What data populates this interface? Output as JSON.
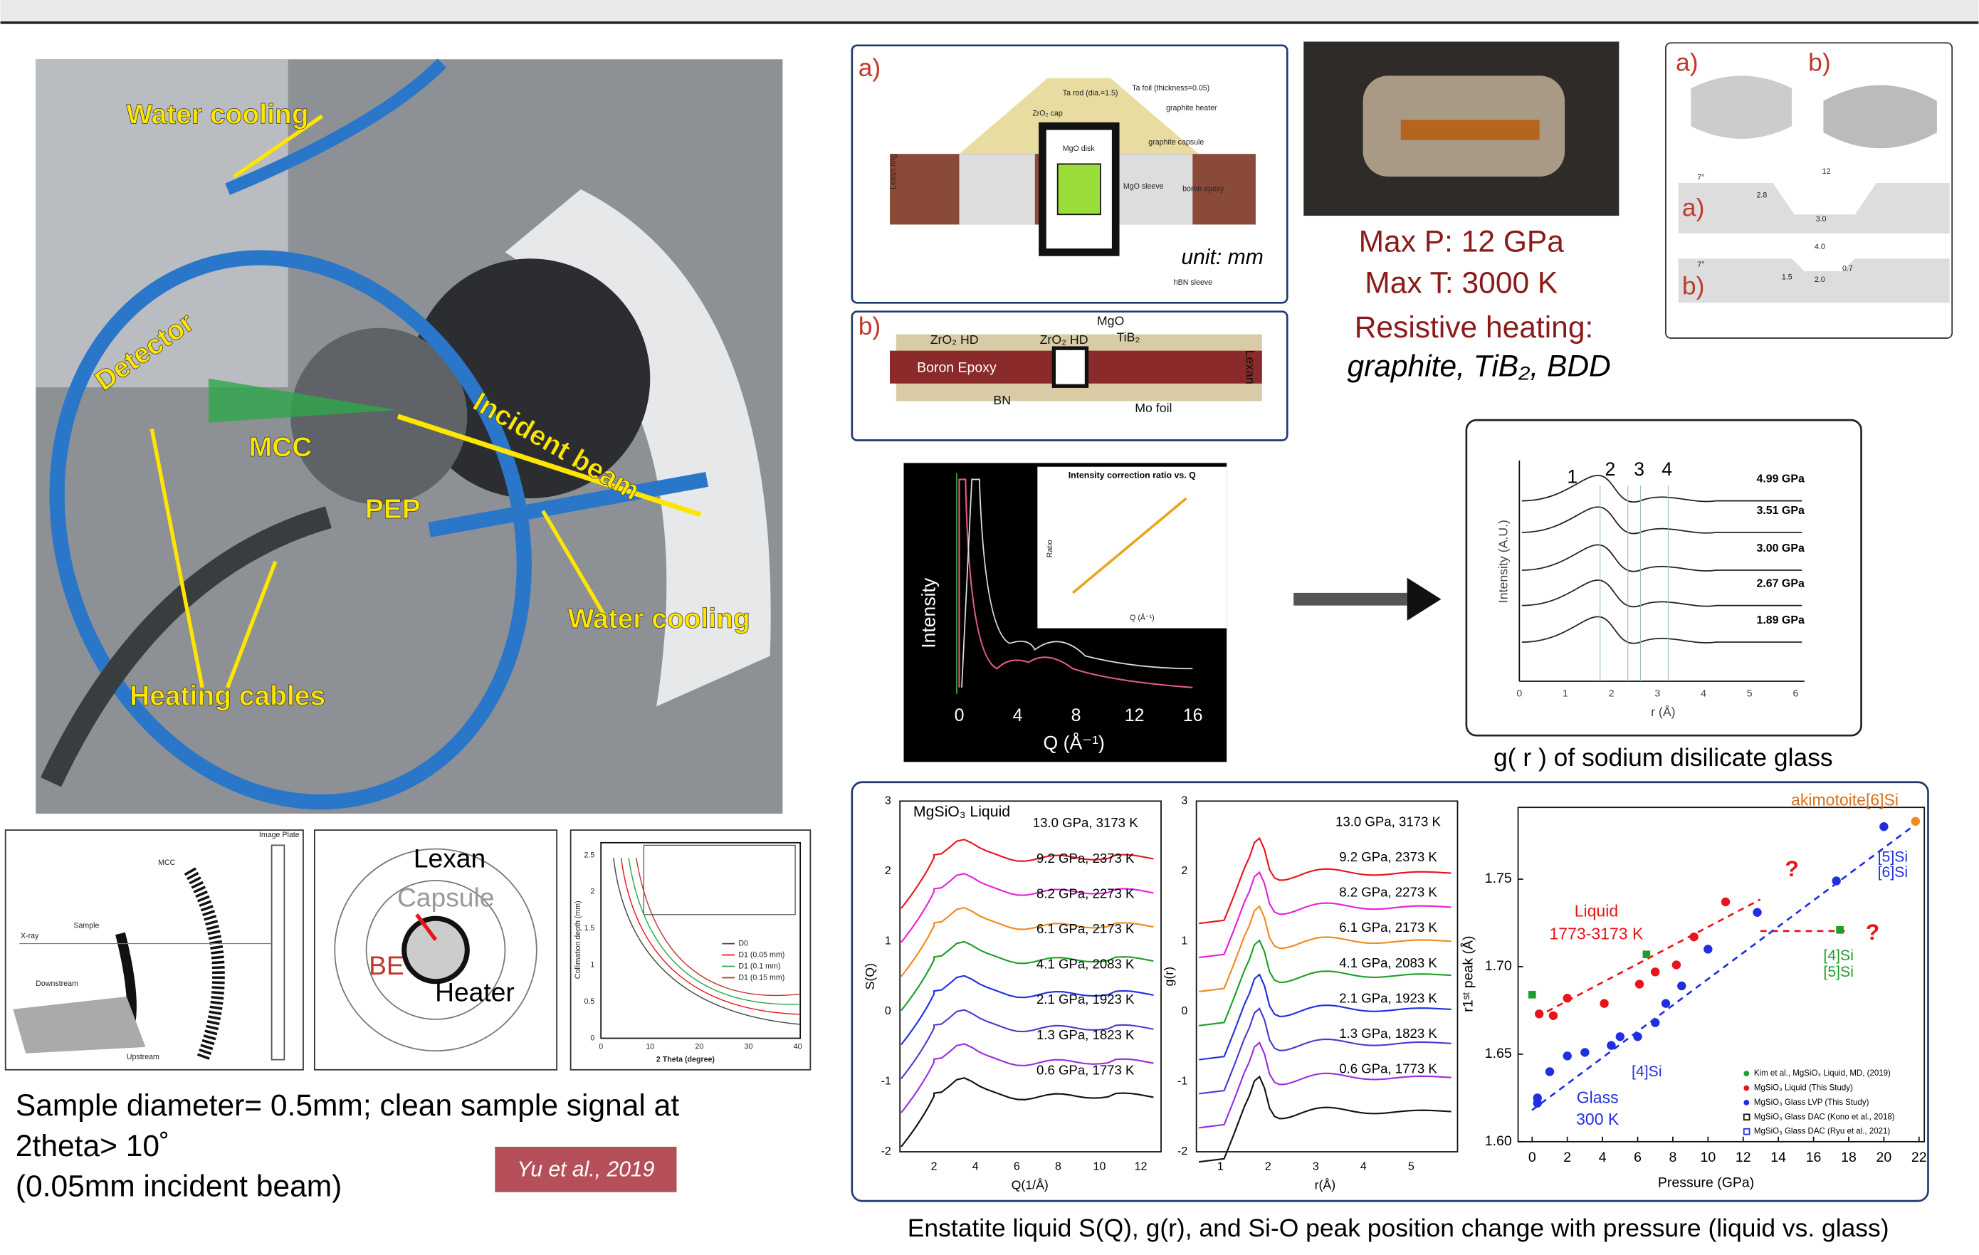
{
  "photo": {
    "labels": [
      "Water cooling",
      "Detector",
      "MCC",
      "Incident beam",
      "PEP",
      "Water cooling",
      "Heating cables"
    ]
  },
  "schematic_mcc": {
    "texts": [
      "MCC",
      "Image Plate",
      "Sample",
      "X-ray",
      "Downstream",
      "Upstream"
    ]
  },
  "schematic_cell": {
    "lexan": "Lexan",
    "capsule": "Capsule",
    "be": "BE",
    "heater": "Heater"
  },
  "schematic_depth": {
    "yticks": [
      "0",
      "0.5",
      "1",
      "1.5",
      "2",
      "2.5"
    ],
    "xticks": [
      "0",
      "10",
      "20",
      "30",
      "40"
    ],
    "xlabel": "2 Theta (degree)",
    "ylabel": "Collimation depth (mm)",
    "legend": [
      "D0",
      "D1 (0.05 mm)",
      "D1 (0.1 mm)",
      "D1 (0.15 mm)"
    ]
  },
  "sample_note": [
    "Sample diameter= 0.5mm; clean sample signal at",
    "2theta> 10˚",
    "(0.05mm incident beam)"
  ],
  "citation": "Yu et al., 2019",
  "cell": {
    "a_label": "a)",
    "b_label": "b)",
    "unit": "unit: mm",
    "a_texts": [
      "ZrO₂ cap",
      "Ta rod (dia.=1.5)",
      "Ta foil (thickness=0.05)",
      "graphite heater",
      "graphite capsule",
      "MgO disk",
      "MgO sleeve",
      "boron epoxy",
      "Lexan ring",
      "hBN sleeve"
    ],
    "b_texts": [
      "ZrO₂ HD",
      "ZrO₂ HD",
      "MgO",
      "TiB₂",
      "Boron Epoxy",
      "BN",
      "Mo foil",
      "Lexan"
    ]
  },
  "press": {
    "max_p": "Max P: 12 GPa",
    "max_t": "Max T: 3000 K",
    "heating": "Resistive heating:",
    "materials": "graphite, TiB₂, BDD"
  },
  "anvils": {
    "labels": [
      "a)",
      "b)",
      "a)",
      "b)"
    ],
    "dims": [
      "12",
      "2.8",
      "3.0",
      "4.0",
      "1.5",
      "2.0",
      "0.7",
      "7°",
      "7°"
    ]
  },
  "intensity_plot": {
    "ylabel": "Intensity",
    "xlabel": "Q (Å⁻¹)",
    "xticks": [
      "0",
      "4",
      "8",
      "12",
      "16"
    ],
    "inset_title": "Intensity correction ratio vs. Q",
    "inset_ylabel": "Ratio",
    "inset_xlabel": "Q (Å⁻¹)"
  },
  "gr_plot": {
    "peaks": [
      "1",
      "2",
      "3",
      "4"
    ],
    "pressures": [
      "4.99 GPa",
      "3.51 GPa",
      "3.00 GPa",
      "2.67 GPa",
      "1.89 GPa"
    ],
    "ylabel": "Intensity (A.U.)",
    "xlabel": "r (Å)",
    "xticks": [
      "0",
      "1",
      "2",
      "3",
      "4",
      "5",
      "6"
    ],
    "caption": "g( r ) of sodium disilicate glass"
  },
  "sq_plot": {
    "title": "MgSiO₃ Liquid",
    "xlabel": "Q(1/Å)",
    "ylabel": "S(Q)",
    "xticks": [
      "2",
      "4",
      "6",
      "8",
      "10",
      "12"
    ],
    "yticks": [
      "3",
      "2",
      "1",
      "0",
      "-1",
      "-2"
    ],
    "curves": [
      {
        "label": "13.0 GPa, 3173 K",
        "color": "#e8141c"
      },
      {
        "label": "9.2 GPa, 2373 K",
        "color": "#e81ee0"
      },
      {
        "label": "8.2 GPa, 2273 K",
        "color": "#f08a1c"
      },
      {
        "label": "6.1 GPa, 2173 K",
        "color": "#1e9e2a"
      },
      {
        "label": "4.1 GPa, 2083 K",
        "color": "#1f2fe0"
      },
      {
        "label": "2.1 GPa, 1923 K",
        "color": "#4a3ad0"
      },
      {
        "label": "1.3 GPa, 1823 K",
        "color": "#9a2ee0"
      },
      {
        "label": "0.6 GPa, 1773 K",
        "color": "#111111"
      }
    ]
  },
  "gr2_plot": {
    "xlabel": "r(Å)",
    "ylabel": "g(r)",
    "xticks": [
      "1",
      "2",
      "3",
      "4",
      "5"
    ],
    "yticks": [
      "3",
      "2",
      "1",
      "0",
      "-1",
      "-2"
    ],
    "curves": [
      "13.0 GPa, 3173 K",
      "9.2 GPa, 2373 K",
      "8.2 GPa, 2273 K",
      "6.1 GPa, 2173 K",
      "4.1 GPa, 2083 K",
      "2.1 GPa, 1923 K",
      "1.3 GPa, 1823 K",
      "0.6 GPa, 1773 K"
    ]
  },
  "peak_plot": {
    "xlabel": "Pressure (GPa)",
    "ylabel": "r1ˢᵗ peak (Å)",
    "xlim": [
      -0.8,
      22.3
    ],
    "ylim": [
      1.6,
      1.791
    ],
    "xticks": [
      0,
      2,
      4,
      6,
      8,
      10,
      12,
      14,
      16,
      18,
      20,
      22
    ],
    "yticks": [
      {
        "value": 1.6,
        "label": "1.60"
      },
      {
        "value": 1.65,
        "label": "1.65"
      },
      {
        "value": 1.7,
        "label": "1.70"
      },
      {
        "value": 1.75,
        "label": "1.75"
      }
    ],
    "liquid": {
      "color": "#e8141c",
      "x": [
        0.4,
        1.2,
        2,
        4.1,
        6.1,
        7,
        8.2,
        9.2,
        11
      ],
      "y": [
        1.673,
        1.672,
        1.682,
        1.679,
        1.69,
        1.697,
        1.701,
        1.717,
        1.737
      ]
    },
    "glass": {
      "color": "#1f2fe0",
      "x": [
        0.3,
        0.3,
        1,
        2,
        3,
        4.5,
        5,
        6,
        7,
        7.6,
        8.5,
        10,
        12.8,
        17.3,
        20
      ],
      "y": [
        1.622,
        1.625,
        1.64,
        1.649,
        1.651,
        1.655,
        1.66,
        1.66,
        1.668,
        1.679,
        1.689,
        1.71,
        1.731,
        1.749,
        1.78
      ]
    },
    "kim": {
      "color": "#1e9e2a",
      "x": [
        0,
        6.5,
        17.5
      ],
      "y": [
        1.684,
        1.707,
        1.721
      ]
    },
    "akimotoite": {
      "color": "#f08a1c",
      "x": [
        21.8
      ],
      "y": [
        1.783
      ]
    },
    "annotations": {
      "liquid": "Liquid",
      "liquid_t": "1773-3173 K",
      "q1": "?",
      "q2": "?",
      "glass": "Glass",
      "glass_t": "300 K",
      "si4": "[4]Si",
      "si5": "[5]Si",
      "si6": "[6]Si",
      "si4g": "[4]Si",
      "si5g": "[5]Si",
      "akim": "akimotoite[6]Si"
    },
    "legend": [
      "Kim et al., MgSiO₃ Liquid, MD, (2019)",
      "MgSiO₃ Liquid (This Study)",
      "MgSiO₃ Glass LVP (This Study)",
      "MgSiO₃ Glass DAC (Kono et al., 2018)",
      "MgSiO₃ Glass DAC (Ryu et al., 2021)"
    ]
  },
  "footer_caption": "Enstatite liquid S(Q), g(r), and Si-O peak position change with pressure (liquid vs. glass)"
}
